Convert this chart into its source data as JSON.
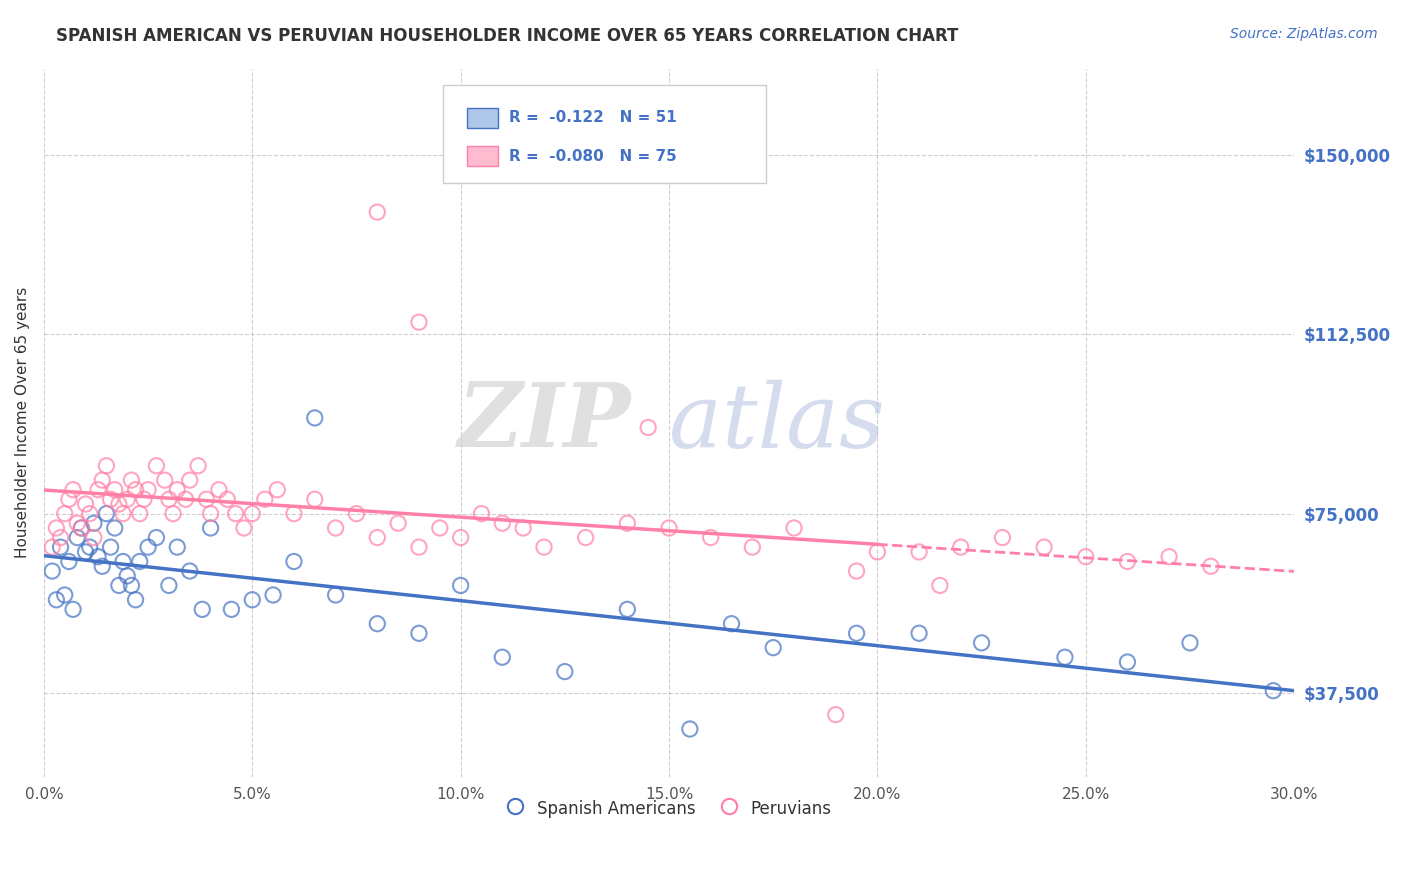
{
  "title": "SPANISH AMERICAN VS PERUVIAN HOUSEHOLDER INCOME OVER 65 YEARS CORRELATION CHART",
  "source": "Source: ZipAtlas.com",
  "ylabel": "Householder Income Over 65 years",
  "xlim": [
    0.0,
    30.0
  ],
  "ylim": [
    20000,
    168000
  ],
  "yticks": [
    37500,
    75000,
    112500,
    150000
  ],
  "ytick_labels": [
    "$37,500",
    "$75,000",
    "$112,500",
    "$150,000"
  ],
  "xticks": [
    0.0,
    5.0,
    10.0,
    15.0,
    20.0,
    25.0,
    30.0
  ],
  "xtick_labels": [
    "0.0%",
    "5.0%",
    "10.0%",
    "15.0%",
    "20.0%",
    "25.0%",
    "30.0%"
  ],
  "blue_color": "#4472C4",
  "pink_color": "#FF7FA6",
  "legend_blue_r": "R =  -0.122",
  "legend_blue_n": "N = 51",
  "legend_pink_r": "R =  -0.080",
  "legend_pink_n": "N = 75",
  "legend_label_blue": "Spanish Americans",
  "legend_label_pink": "Peruvians",
  "watermark_zip": "ZIP",
  "watermark_atlas": "atlas",
  "blue_x": [
    0.2,
    0.3,
    0.4,
    0.5,
    0.6,
    0.7,
    0.8,
    0.9,
    1.0,
    1.1,
    1.2,
    1.3,
    1.4,
    1.5,
    1.6,
    1.7,
    1.8,
    1.9,
    2.0,
    2.1,
    2.2,
    2.3,
    2.5,
    2.7,
    3.0,
    3.2,
    3.5,
    3.8,
    4.0,
    4.5,
    5.0,
    5.5,
    6.0,
    6.5,
    7.0,
    8.0,
    9.0,
    10.0,
    11.0,
    12.5,
    14.0,
    15.5,
    16.5,
    17.5,
    19.5,
    21.0,
    22.5,
    24.5,
    26.0,
    27.5,
    29.5
  ],
  "blue_y": [
    63000,
    57000,
    68000,
    58000,
    65000,
    55000,
    70000,
    72000,
    67000,
    68000,
    73000,
    66000,
    64000,
    75000,
    68000,
    72000,
    60000,
    65000,
    62000,
    60000,
    57000,
    65000,
    68000,
    70000,
    60000,
    68000,
    63000,
    55000,
    72000,
    55000,
    57000,
    58000,
    65000,
    95000,
    58000,
    52000,
    50000,
    60000,
    45000,
    42000,
    55000,
    30000,
    52000,
    47000,
    50000,
    50000,
    48000,
    45000,
    44000,
    48000,
    38000
  ],
  "pink_x": [
    0.2,
    0.3,
    0.4,
    0.5,
    0.6,
    0.7,
    0.8,
    0.9,
    1.0,
    1.1,
    1.2,
    1.3,
    1.4,
    1.5,
    1.6,
    1.7,
    1.8,
    1.9,
    2.0,
    2.1,
    2.2,
    2.3,
    2.4,
    2.5,
    2.7,
    2.9,
    3.0,
    3.1,
    3.2,
    3.4,
    3.5,
    3.7,
    3.9,
    4.0,
    4.2,
    4.4,
    4.6,
    4.8,
    5.0,
    5.3,
    5.6,
    6.0,
    6.5,
    7.0,
    7.5,
    8.0,
    8.5,
    9.0,
    9.5,
    10.0,
    10.5,
    11.0,
    11.5,
    12.0,
    13.0,
    14.0,
    15.0,
    16.0,
    17.0,
    18.0,
    19.0,
    20.0,
    21.0,
    22.0,
    23.0,
    24.0,
    25.0,
    26.0,
    27.0,
    28.0,
    8.0,
    9.0,
    14.5,
    19.5,
    21.5
  ],
  "pink_y": [
    68000,
    72000,
    70000,
    75000,
    78000,
    80000,
    73000,
    72000,
    77000,
    75000,
    70000,
    80000,
    82000,
    85000,
    78000,
    80000,
    77000,
    75000,
    78000,
    82000,
    80000,
    75000,
    78000,
    80000,
    85000,
    82000,
    78000,
    75000,
    80000,
    78000,
    82000,
    85000,
    78000,
    75000,
    80000,
    78000,
    75000,
    72000,
    75000,
    78000,
    80000,
    75000,
    78000,
    72000,
    75000,
    70000,
    73000,
    68000,
    72000,
    70000,
    75000,
    73000,
    72000,
    68000,
    70000,
    73000,
    72000,
    70000,
    68000,
    72000,
    33000,
    67000,
    67000,
    68000,
    70000,
    68000,
    66000,
    65000,
    66000,
    64000,
    138000,
    115000,
    93000,
    63000,
    60000
  ]
}
